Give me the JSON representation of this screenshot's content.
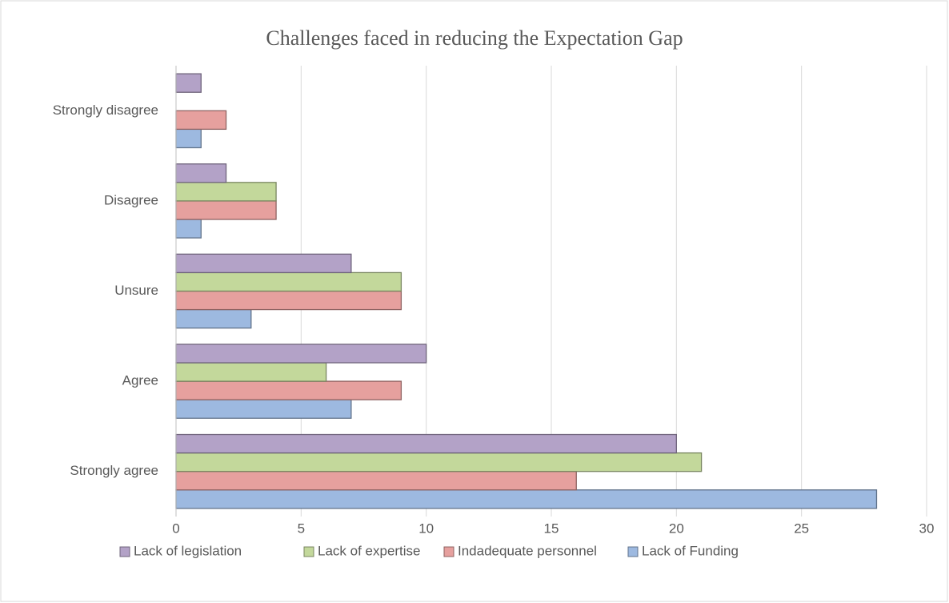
{
  "chart_data": {
    "type": "hbar",
    "title": "Challenges faced in reducing the Expectation Gap",
    "categories": [
      "Strongly agree",
      "Agree",
      "Unsure",
      "Disagree",
      "Strongly disagree"
    ],
    "series": [
      {
        "name": "Lack of Funding",
        "color": "#9db9e0",
        "values": [
          28,
          7,
          3,
          1,
          1
        ]
      },
      {
        "name": "Indadequate personnel",
        "color": "#e6a09e",
        "values": [
          16,
          9,
          9,
          4,
          2
        ]
      },
      {
        "name": "Lack of expertise",
        "color": "#c3d89b",
        "values": [
          21,
          6,
          9,
          4,
          0
        ]
      },
      {
        "name": "Lack of legislation",
        "color": "#b3a2c7",
        "values": [
          20,
          10,
          7,
          2,
          1
        ]
      }
    ],
    "xlim": [
      0,
      30
    ],
    "xticks": [
      0,
      5,
      10,
      15,
      20,
      25,
      30
    ],
    "grid": true,
    "legend": "bottom"
  }
}
